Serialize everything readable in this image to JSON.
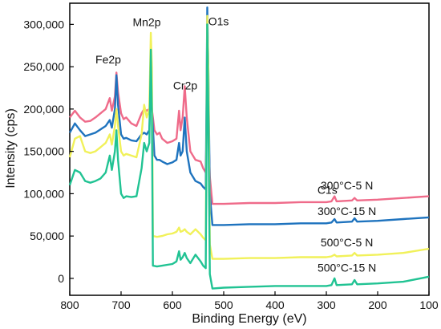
{
  "chart_data": {
    "type": "line",
    "xlabel": "Binding Energy (eV)",
    "ylabel": "Intensity (cps)",
    "xlim": [
      800,
      100
    ],
    "ylim": [
      -20000,
      325000
    ],
    "x_ticks": [
      800,
      700,
      600,
      500,
      400,
      300,
      200,
      100
    ],
    "x_tick_labels": [
      "800",
      "700",
      "600",
      "500",
      "400",
      "300",
      "200",
      "100"
    ],
    "y_ticks": [
      0,
      50000,
      100000,
      150000,
      200000,
      250000,
      300000
    ],
    "y_tick_labels": [
      "0",
      "50,000",
      "100,000",
      "150,000",
      "200,000",
      "250,000",
      "300,000"
    ],
    "grid": false,
    "series": [
      {
        "name": "300°C-5 N",
        "color": "#ef6b8a",
        "points": [
          [
            800,
            190000
          ],
          [
            790,
            198000
          ],
          [
            780,
            190000
          ],
          [
            770,
            185000
          ],
          [
            760,
            186000
          ],
          [
            750,
            190000
          ],
          [
            740,
            195000
          ],
          [
            730,
            200000
          ],
          [
            722,
            213000
          ],
          [
            718,
            198000
          ],
          [
            712,
            215000
          ],
          [
            709,
            243000
          ],
          [
            706,
            220000
          ],
          [
            700,
            195000
          ],
          [
            695,
            188000
          ],
          [
            690,
            190000
          ],
          [
            680,
            183000
          ],
          [
            670,
            180000
          ],
          [
            660,
            195000
          ],
          [
            655,
            200000
          ],
          [
            650,
            198000
          ],
          [
            645,
            200000
          ],
          [
            642,
            225000
          ],
          [
            640,
            200000
          ],
          [
            635,
            175000
          ],
          [
            630,
            170000
          ],
          [
            625,
            172000
          ],
          [
            620,
            165000
          ],
          [
            610,
            160000
          ],
          [
            600,
            162000
          ],
          [
            592,
            165000
          ],
          [
            587,
            198000
          ],
          [
            584,
            175000
          ],
          [
            580,
            190000
          ],
          [
            576,
            227000
          ],
          [
            572,
            190000
          ],
          [
            565,
            150000
          ],
          [
            555,
            140000
          ],
          [
            545,
            138000
          ],
          [
            540,
            130000
          ],
          [
            535,
            125000
          ],
          [
            532,
            210000
          ],
          [
            530,
            180000
          ],
          [
            527,
            120000
          ],
          [
            522,
            88000
          ],
          [
            500,
            88000
          ],
          [
            450,
            89000
          ],
          [
            400,
            89000
          ],
          [
            350,
            90000
          ],
          [
            300,
            90000
          ],
          [
            290,
            91000
          ],
          [
            284,
            97000
          ],
          [
            280,
            91000
          ],
          [
            250,
            92000
          ],
          [
            245,
            95000
          ],
          [
            240,
            92000
          ],
          [
            200,
            93000
          ],
          [
            150,
            95000
          ],
          [
            100,
            97000
          ]
        ]
      },
      {
        "name": "300°C-15 N",
        "color": "#1e73be",
        "points": [
          [
            800,
            172000
          ],
          [
            790,
            183000
          ],
          [
            780,
            175000
          ],
          [
            770,
            168000
          ],
          [
            760,
            170000
          ],
          [
            750,
            172000
          ],
          [
            740,
            176000
          ],
          [
            730,
            180000
          ],
          [
            722,
            187000
          ],
          [
            718,
            178000
          ],
          [
            712,
            200000
          ],
          [
            709,
            240000
          ],
          [
            706,
            205000
          ],
          [
            700,
            170000
          ],
          [
            695,
            165000
          ],
          [
            690,
            166000
          ],
          [
            680,
            163000
          ],
          [
            670,
            162000
          ],
          [
            660,
            170000
          ],
          [
            655,
            172000
          ],
          [
            650,
            170000
          ],
          [
            645,
            175000
          ],
          [
            642,
            238000
          ],
          [
            640,
            200000
          ],
          [
            635,
            145000
          ],
          [
            630,
            140000
          ],
          [
            625,
            140000
          ],
          [
            620,
            138000
          ],
          [
            610,
            135000
          ],
          [
            600,
            137000
          ],
          [
            592,
            140000
          ],
          [
            587,
            160000
          ],
          [
            584,
            145000
          ],
          [
            580,
            150000
          ],
          [
            576,
            190000
          ],
          [
            572,
            150000
          ],
          [
            565,
            125000
          ],
          [
            555,
            115000
          ],
          [
            545,
            112000
          ],
          [
            540,
            108000
          ],
          [
            535,
            105000
          ],
          [
            532,
            320000
          ],
          [
            530,
            250000
          ],
          [
            527,
            100000
          ],
          [
            522,
            63000
          ],
          [
            500,
            63000
          ],
          [
            450,
            64000
          ],
          [
            400,
            64000
          ],
          [
            350,
            65000
          ],
          [
            300,
            65000
          ],
          [
            290,
            66000
          ],
          [
            284,
            70000
          ],
          [
            280,
            66000
          ],
          [
            250,
            67000
          ],
          [
            245,
            71000
          ],
          [
            240,
            67000
          ],
          [
            200,
            68000
          ],
          [
            150,
            70000
          ],
          [
            100,
            72000
          ]
        ]
      },
      {
        "name": "500°C-5 N",
        "color": "#f1f15a",
        "points": [
          [
            800,
            143000
          ],
          [
            790,
            165000
          ],
          [
            780,
            168000
          ],
          [
            770,
            150000
          ],
          [
            760,
            148000
          ],
          [
            750,
            150000
          ],
          [
            740,
            155000
          ],
          [
            730,
            160000
          ],
          [
            722,
            170000
          ],
          [
            718,
            158000
          ],
          [
            712,
            180000
          ],
          [
            709,
            200000
          ],
          [
            706,
            180000
          ],
          [
            700,
            150000
          ],
          [
            695,
            145000
          ],
          [
            690,
            147000
          ],
          [
            680,
            145000
          ],
          [
            670,
            143000
          ],
          [
            660,
            170000
          ],
          [
            655,
            205000
          ],
          [
            650,
            190000
          ],
          [
            645,
            200000
          ],
          [
            642,
            290000
          ],
          [
            640,
            250000
          ],
          [
            638,
            50000
          ],
          [
            630,
            49000
          ],
          [
            620,
            50000
          ],
          [
            610,
            52000
          ],
          [
            600,
            53000
          ],
          [
            592,
            55000
          ],
          [
            587,
            60000
          ],
          [
            584,
            55000
          ],
          [
            580,
            56000
          ],
          [
            576,
            58000
          ],
          [
            572,
            55000
          ],
          [
            565,
            52000
          ],
          [
            555,
            58000
          ],
          [
            545,
            52000
          ],
          [
            540,
            48000
          ],
          [
            535,
            45000
          ],
          [
            532,
            310000
          ],
          [
            530,
            250000
          ],
          [
            527,
            40000
          ],
          [
            522,
            23000
          ],
          [
            500,
            23000
          ],
          [
            450,
            24000
          ],
          [
            400,
            24000
          ],
          [
            350,
            25000
          ],
          [
            300,
            25000
          ],
          [
            290,
            26000
          ],
          [
            284,
            28000
          ],
          [
            280,
            26000
          ],
          [
            250,
            27000
          ],
          [
            245,
            30000
          ],
          [
            240,
            27000
          ],
          [
            200,
            28000
          ],
          [
            150,
            30000
          ],
          [
            100,
            35000
          ]
        ]
      },
      {
        "name": "500°C-15 N",
        "color": "#21c393",
        "points": [
          [
            800,
            110000
          ],
          [
            790,
            128000
          ],
          [
            780,
            125000
          ],
          [
            770,
            115000
          ],
          [
            760,
            113000
          ],
          [
            750,
            115000
          ],
          [
            740,
            118000
          ],
          [
            730,
            125000
          ],
          [
            722,
            145000
          ],
          [
            718,
            128000
          ],
          [
            712,
            150000
          ],
          [
            709,
            175000
          ],
          [
            706,
            140000
          ],
          [
            700,
            100000
          ],
          [
            695,
            95000
          ],
          [
            690,
            97000
          ],
          [
            680,
            96000
          ],
          [
            670,
            97000
          ],
          [
            660,
            130000
          ],
          [
            655,
            160000
          ],
          [
            650,
            150000
          ],
          [
            645,
            160000
          ],
          [
            642,
            270000
          ],
          [
            640,
            200000
          ],
          [
            638,
            15000
          ],
          [
            630,
            14000
          ],
          [
            620,
            15000
          ],
          [
            610,
            16000
          ],
          [
            600,
            17000
          ],
          [
            592,
            20000
          ],
          [
            587,
            32000
          ],
          [
            584,
            22000
          ],
          [
            580,
            25000
          ],
          [
            576,
            30000
          ],
          [
            572,
            24000
          ],
          [
            565,
            18000
          ],
          [
            555,
            28000
          ],
          [
            545,
            20000
          ],
          [
            540,
            15000
          ],
          [
            535,
            12000
          ],
          [
            532,
            300000
          ],
          [
            530,
            200000
          ],
          [
            527,
            5000
          ],
          [
            522,
            -12000
          ],
          [
            500,
            -11000
          ],
          [
            450,
            -10000
          ],
          [
            400,
            -9000
          ],
          [
            350,
            -9000
          ],
          [
            300,
            -9000
          ],
          [
            290,
            -8000
          ],
          [
            284,
            0
          ],
          [
            280,
            -8000
          ],
          [
            250,
            -7000
          ],
          [
            245,
            -2000
          ],
          [
            240,
            -7000
          ],
          [
            200,
            -6000
          ],
          [
            150,
            -4000
          ],
          [
            100,
            2000
          ]
        ]
      }
    ],
    "annotations": [
      {
        "text": "Mn2p",
        "x": 650,
        "y": 298000
      },
      {
        "text": "O1s",
        "x": 510,
        "y": 299000
      },
      {
        "text": "Fe2p",
        "x": 725,
        "y": 254000
      },
      {
        "text": "Cr2p",
        "x": 575,
        "y": 223000
      },
      {
        "text": "C1s",
        "x": 298,
        "y": 100000
      },
      {
        "text": "300°C-5 N",
        "x": 260,
        "y": 105000
      },
      {
        "text": "300°C-15 N",
        "x": 260,
        "y": 75000
      },
      {
        "text": "500°C-5 N",
        "x": 260,
        "y": 38000
      },
      {
        "text": "500°C-15 N",
        "x": 260,
        "y": 8000
      }
    ]
  }
}
